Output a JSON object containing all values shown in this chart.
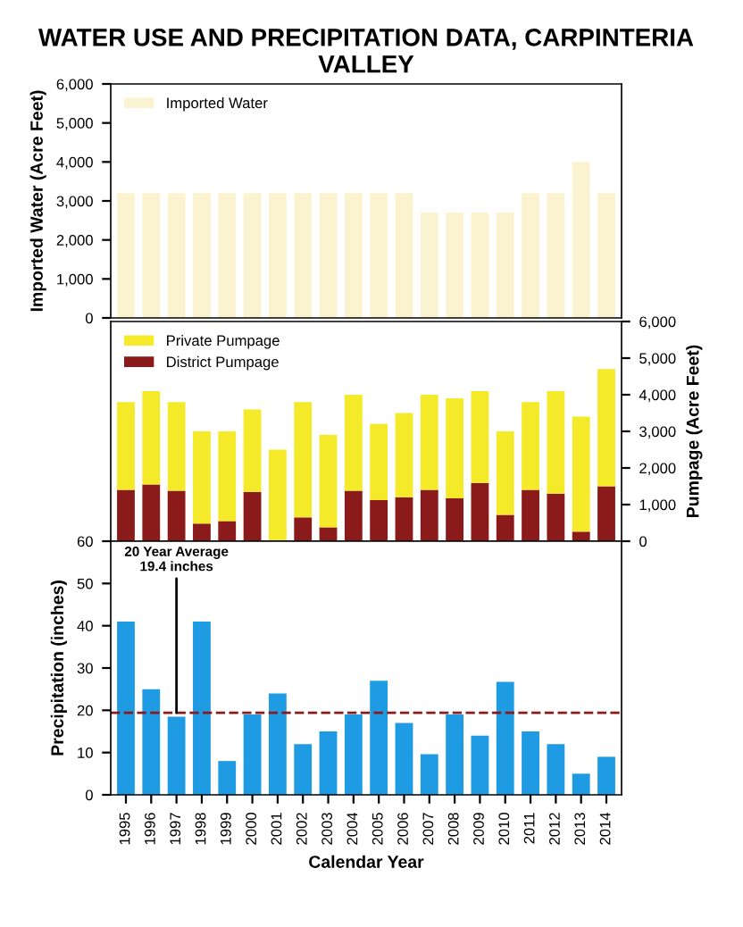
{
  "chart_data": [
    {
      "type": "bar",
      "title": "WATER USE AND PRECIPITATION DATA, CARPINTERIA VALLEY",
      "ylabel": "Imported Water (Acre Feet)",
      "categories": [
        "1995",
        "1996",
        "1997",
        "1998",
        "1999",
        "2000",
        "2001",
        "2002",
        "2003",
        "2004",
        "2005",
        "2006",
        "2007",
        "2008",
        "2009",
        "2010",
        "2011",
        "2012",
        "2013",
        "2014"
      ],
      "series": [
        {
          "name": "Imported Water",
          "color": "#fbf3d0",
          "values": [
            3200,
            3200,
            3200,
            3200,
            3200,
            3200,
            3200,
            3200,
            3200,
            3200,
            3200,
            3200,
            2700,
            2700,
            2700,
            2700,
            3200,
            3200,
            4000,
            3200
          ]
        }
      ],
      "ylim": [
        0,
        6000
      ],
      "yticks": [
        0,
        {
          "value": 1000,
          "label": "1,000"
        },
        {
          "value": 2000,
          "label": "2,000"
        },
        {
          "value": 3000,
          "label": "3,000"
        },
        {
          "value": 4000,
          "label": "4,000"
        },
        {
          "value": 5000,
          "label": "5,000"
        },
        {
          "value": 6000,
          "label": "6,000"
        }
      ],
      "legend": "top left",
      "tick_labels": "y"
    },
    {
      "type": "bar",
      "ylabel": "Pumpage (Acre Feet)",
      "stacked": true,
      "categories": [
        "1995",
        "1996",
        "1997",
        "1998",
        "1999",
        "2000",
        "2001",
        "2002",
        "2003",
        "2004",
        "2005",
        "2006",
        "2007",
        "2008",
        "2009",
        "2010",
        "2011",
        "2012",
        "2013",
        "2014"
      ],
      "series": [
        {
          "name": "District Pumpage",
          "color": "#8b1a1a",
          "values": [
            1400,
            1550,
            1380,
            480,
            550,
            1350,
            null,
            650,
            380,
            1380,
            1120,
            1200,
            1400,
            1170,
            1590,
            720,
            1400,
            1300,
            260,
            1500
          ]
        },
        {
          "name": "Private Pumpage",
          "color": "#f5ea2a",
          "values": [
            2400,
            2550,
            2420,
            2520,
            2450,
            2250,
            2500,
            3150,
            2520,
            2620,
            2080,
            2300,
            2600,
            2730,
            2510,
            2280,
            2400,
            2800,
            3140,
            3200
          ]
        }
      ],
      "ylim": [
        0,
        6000
      ],
      "yticks": [
        0,
        {
          "value": 1000,
          "label": "1,000"
        },
        {
          "value": 2000,
          "label": "2,000"
        },
        {
          "value": 3000,
          "label": "3,000"
        },
        {
          "value": 4000,
          "label": "4,000"
        },
        {
          "value": 5000,
          "label": "5,000"
        },
        {
          "value": 6000,
          "label": "6,000"
        }
      ],
      "legend": "top left",
      "tick_labels": "y"
    },
    {
      "type": "bar",
      "ylabel": "Precipitation (inches)",
      "xlabel": "Calendar Year",
      "categories": [
        "1995",
        "1996",
        "1997",
        "1998",
        "1999",
        "2000",
        "2001",
        "2002",
        "2003",
        "2004",
        "2005",
        "2006",
        "2007",
        "2008",
        "2009",
        "2010",
        "2011",
        "2012",
        "2013",
        "2014"
      ],
      "series": [
        {
          "color": "#1e9be3",
          "values": [
            41,
            25,
            18.5,
            41,
            8,
            19,
            24,
            12,
            15,
            19,
            27,
            17,
            9.6,
            19,
            14,
            26.7,
            15,
            12,
            5,
            9
          ]
        }
      ],
      "ylim": [
        0,
        60
      ],
      "yticks": [
        0,
        10,
        20,
        30,
        40,
        50,
        60
      ],
      "ref_lines": [
        {
          "axis": "y",
          "value": 19.4,
          "color": "#8b1a1a",
          "line_style": "dashed"
        }
      ],
      "annotations": [
        {
          "text": "20 Year Average\n19.4 inches",
          "x": "1997",
          "y": 19.4
        }
      ]
    }
  ]
}
